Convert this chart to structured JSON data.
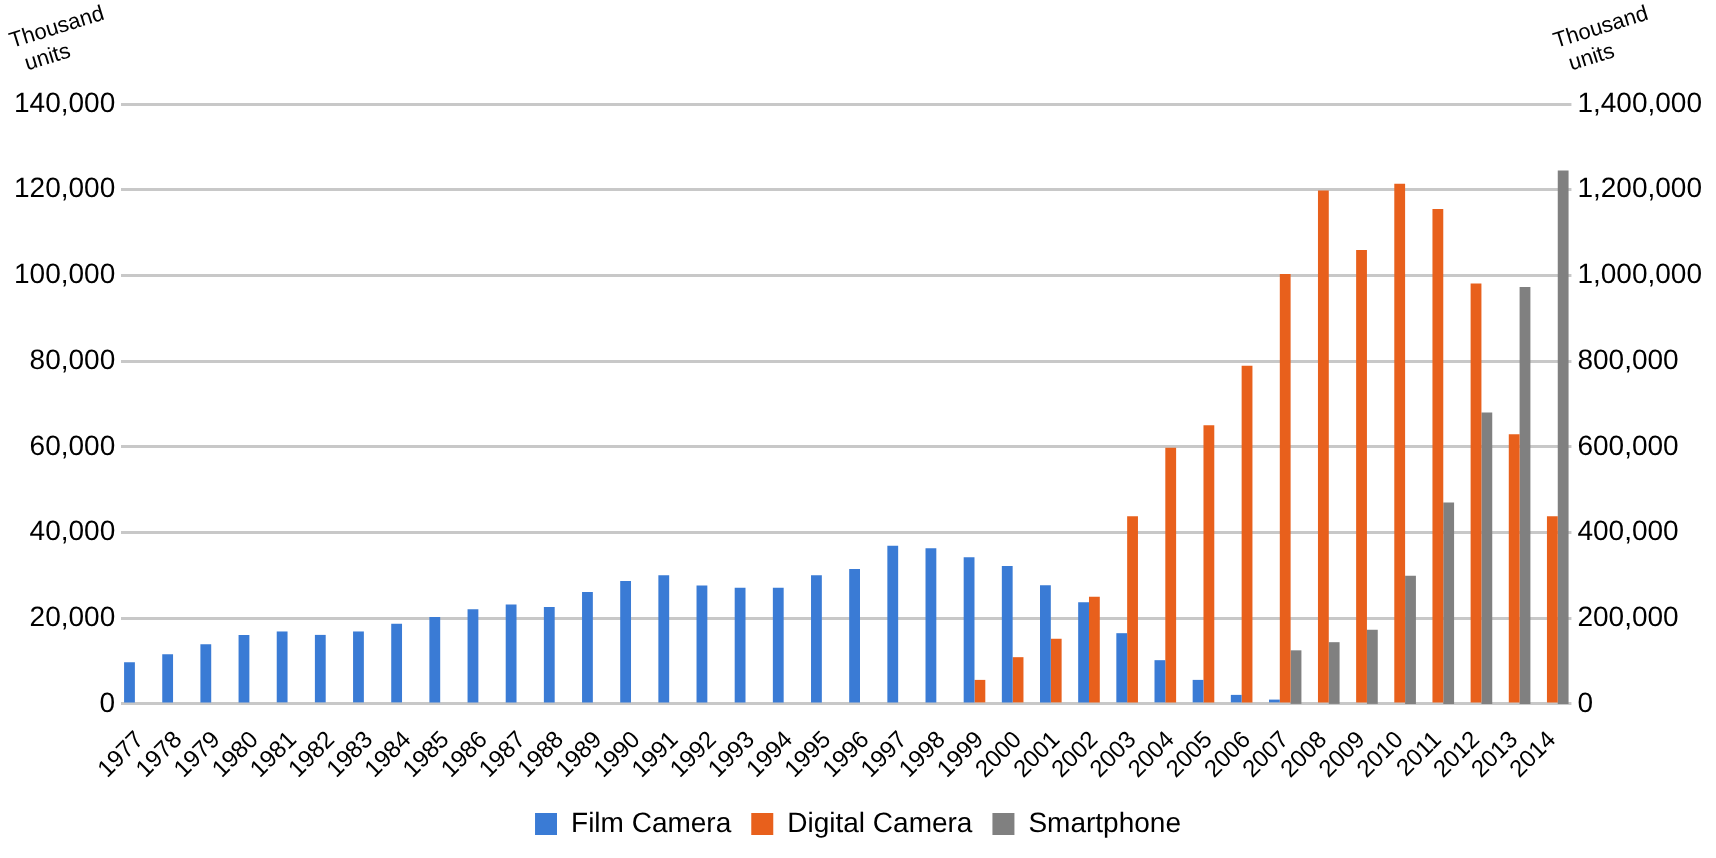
{
  "chart_data": {
    "type": "bar",
    "ylabel": "Thousand units",
    "y2label": "Thousand units",
    "categories": [
      "1977",
      "1978",
      "1979",
      "1980",
      "1981",
      "1982",
      "1983",
      "1984",
      "1985",
      "1986",
      "1987",
      "1988",
      "1989",
      "1990",
      "1991",
      "1992",
      "1993",
      "1994",
      "1995",
      "1996",
      "1997",
      "1998",
      "1999",
      "2000",
      "2001",
      "2002",
      "2003",
      "2004",
      "2005",
      "2006",
      "2007",
      "2008",
      "2009",
      "2010",
      "2011",
      "2012",
      "2013",
      "2014"
    ],
    "series": [
      {
        "name": "Film Camera",
        "color": "#3a7bd5",
        "values": [
          9700,
          11600,
          13900,
          16100,
          16900,
          16100,
          16900,
          18700,
          20300,
          22100,
          23200,
          22600,
          26100,
          28700,
          30000,
          27600,
          27100,
          27100,
          30000,
          31500,
          36900,
          36300,
          34200,
          32200,
          27700,
          23700,
          16500,
          10200,
          5600,
          2100,
          1000,
          null,
          null,
          null,
          null,
          null,
          null,
          null
        ]
      },
      {
        "name": "Digital Camera",
        "color": "#e8601c",
        "values": [
          null,
          null,
          null,
          null,
          null,
          null,
          null,
          null,
          null,
          null,
          null,
          null,
          null,
          null,
          null,
          null,
          null,
          null,
          null,
          null,
          null,
          null,
          5600,
          10900,
          15200,
          25000,
          43800,
          59800,
          65000,
          78900,
          100300,
          119800,
          105900,
          121400,
          115500,
          98100,
          62900,
          43800
        ]
      },
      {
        "name": "Smartphone",
        "color": "#808080",
        "axis": "y2",
        "values": [
          null,
          null,
          null,
          null,
          null,
          null,
          null,
          null,
          null,
          null,
          null,
          null,
          null,
          null,
          null,
          null,
          null,
          null,
          null,
          null,
          null,
          null,
          null,
          null,
          null,
          null,
          null,
          null,
          null,
          null,
          125000,
          144000,
          173000,
          299000,
          470000,
          680000,
          973000,
          1245000
        ]
      }
    ],
    "ylim": [
      0,
      140000
    ],
    "yticks": [
      0,
      {
        "value": 20000,
        "label": "20,000"
      },
      {
        "value": 40000,
        "label": "40,000"
      },
      {
        "value": 60000,
        "label": "60,000"
      },
      {
        "value": 80000,
        "label": "80,000"
      },
      {
        "value": 100000,
        "label": "100,000"
      },
      {
        "value": 120000,
        "label": "120,000"
      },
      {
        "value": 140000,
        "label": "140,000"
      }
    ],
    "y2lim": [
      0,
      1400000
    ],
    "y2ticks": [
      0,
      {
        "value": 200000,
        "label": "200,000"
      },
      {
        "value": 400000,
        "label": "400,000"
      },
      {
        "value": 600000,
        "label": "600,000"
      },
      {
        "value": 800000,
        "label": "800,000"
      },
      {
        "value": 1000000,
        "label": "1,000,000"
      },
      {
        "value": 1200000,
        "label": "1,200,000"
      },
      {
        "value": 1400000,
        "label": "1,400,000"
      }
    ],
    "grid": "y",
    "legend": "bottom"
  }
}
